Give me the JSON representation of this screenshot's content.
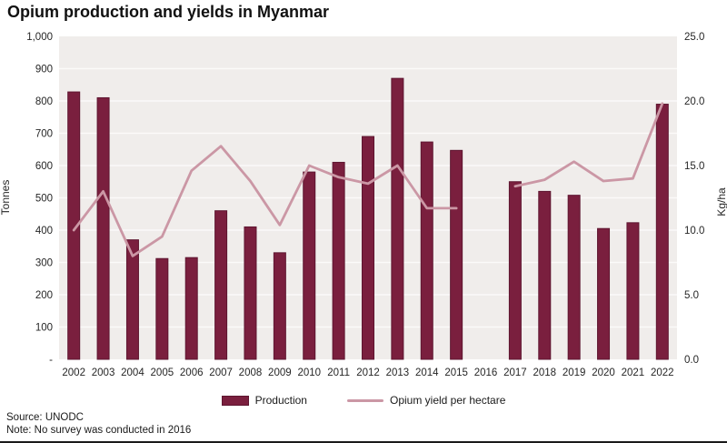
{
  "header": {
    "title": "Opium production and yields in Myanmar"
  },
  "legend": {
    "production_label": "Production",
    "yield_label": "Opium yield per hectare"
  },
  "footer": {
    "source": "Source: UNODC",
    "note": "Note: No survey was conducted in 2016"
  },
  "colors": {
    "bar": "#7a1f3e",
    "bar_border": "#5e1530",
    "line": "#cb97a5",
    "plot_bg": "#f0edeb",
    "grid": "#fbfaf9",
    "tick_text": "#262626"
  },
  "chart_data": {
    "type": "bar",
    "subtype": "bar+line dual-axis",
    "title": "Opium production and yields in Myanmar",
    "categories": [
      "2002",
      "2003",
      "2004",
      "2005",
      "2006",
      "2007",
      "2008",
      "2009",
      "2010",
      "2011",
      "2012",
      "2013",
      "2014",
      "2015",
      "2016",
      "2017",
      "2018",
      "2019",
      "2020",
      "2021",
      "2022"
    ],
    "series": [
      {
        "name": "Production",
        "type": "bar",
        "axis": "left",
        "unit": "Tonnes",
        "values": [
          828,
          810,
          370,
          312,
          315,
          460,
          410,
          330,
          580,
          610,
          690,
          870,
          673,
          647,
          null,
          550,
          520,
          508,
          405,
          423,
          790
        ]
      },
      {
        "name": "Opium yield per hectare",
        "type": "line",
        "axis": "right",
        "unit": "Kg/ha",
        "values": [
          10.0,
          13.0,
          8.0,
          9.5,
          14.6,
          16.5,
          13.8,
          10.4,
          15.0,
          14.1,
          13.6,
          15.0,
          11.7,
          11.7,
          null,
          13.4,
          13.9,
          15.3,
          13.8,
          14.0,
          19.8
        ]
      }
    ],
    "left_axis": {
      "label": "Tonnes",
      "min": 0,
      "max": 1000,
      "tick_step": 100,
      "tick_labels": [
        "1,000",
        "900",
        "800",
        "700",
        "600",
        "500",
        "400",
        "300",
        "200",
        "100",
        "-"
      ]
    },
    "right_axis": {
      "label": "Kg/ha",
      "min": 0,
      "max": 25,
      "tick_step": 5,
      "tick_labels": [
        "25.0",
        "20.0",
        "15.0",
        "10.0",
        "5.0",
        "0.0"
      ]
    },
    "grid": true,
    "legend_position": "bottom",
    "note": "No survey was conducted in 2016 (gap in both series)"
  }
}
